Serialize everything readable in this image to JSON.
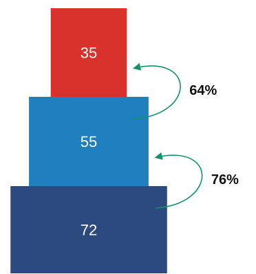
{
  "chart_data": {
    "type": "bar",
    "categories": [
      "",
      "",
      ""
    ],
    "values": [
      35,
      55,
      72
    ],
    "value_labels": [
      "35",
      "55",
      "72"
    ],
    "conversions": [
      "64%",
      "76%"
    ],
    "colors": {
      "bars": [
        "#d9312b",
        "#1f7fbf",
        "#2c4a80"
      ],
      "arrow": "#12936b"
    },
    "title": "",
    "xlabel": "",
    "ylabel": ""
  }
}
